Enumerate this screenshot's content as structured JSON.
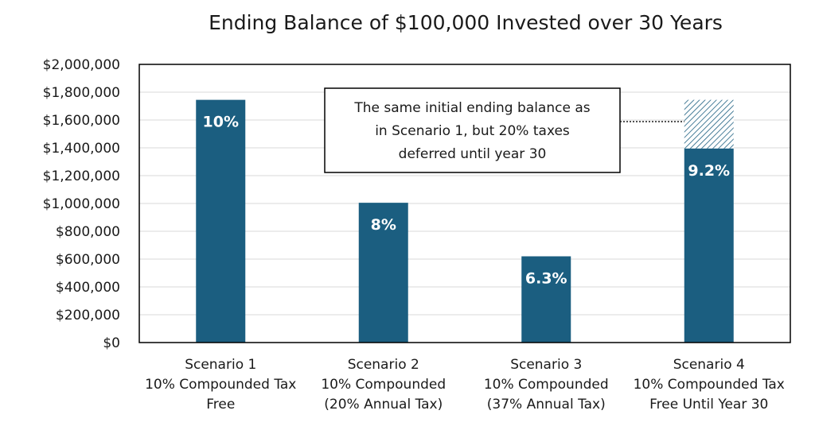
{
  "chart_data": {
    "type": "bar",
    "title": "Ending Balance of $100,000 Invested over 30 Years",
    "xlabel": "",
    "ylabel": "",
    "ylim": [
      0,
      2000000
    ],
    "yticks": [
      "$0",
      "$200,000",
      "$400,000",
      "$600,000",
      "$800,000",
      "$1,000,000",
      "$1,200,000",
      "$1,400,000",
      "$1,600,000",
      "$1,800,000",
      "$2,000,000"
    ],
    "grid": true,
    "categories": [
      [
        "Scenario 1",
        "10% Compounded Tax",
        "Free"
      ],
      [
        "Scenario 2",
        "10% Compounded",
        "(20% Annual Tax)"
      ],
      [
        "Scenario 3",
        "10% Compounded",
        "(37% Annual Tax)"
      ],
      [
        "Scenario 4",
        "10% Compounded Tax",
        "Free Until Year 30"
      ]
    ],
    "values": [
      1745000,
      1005000,
      620000,
      1395000
    ],
    "bar_labels": [
      "10%",
      "8%",
      "6.3%",
      "9.2%"
    ],
    "deferred_tax_segment": {
      "category_index": 3,
      "top_value": 1745000
    },
    "annotation": {
      "lines": [
        "The same initial ending balance as",
        "in Scenario 1, but 20% taxes",
        "deferred until year 30"
      ]
    },
    "colors": {
      "bar": "#1b5e80",
      "hatch": "#1b5e80",
      "grid": "#d9d9d9",
      "axis": "#000000"
    }
  }
}
